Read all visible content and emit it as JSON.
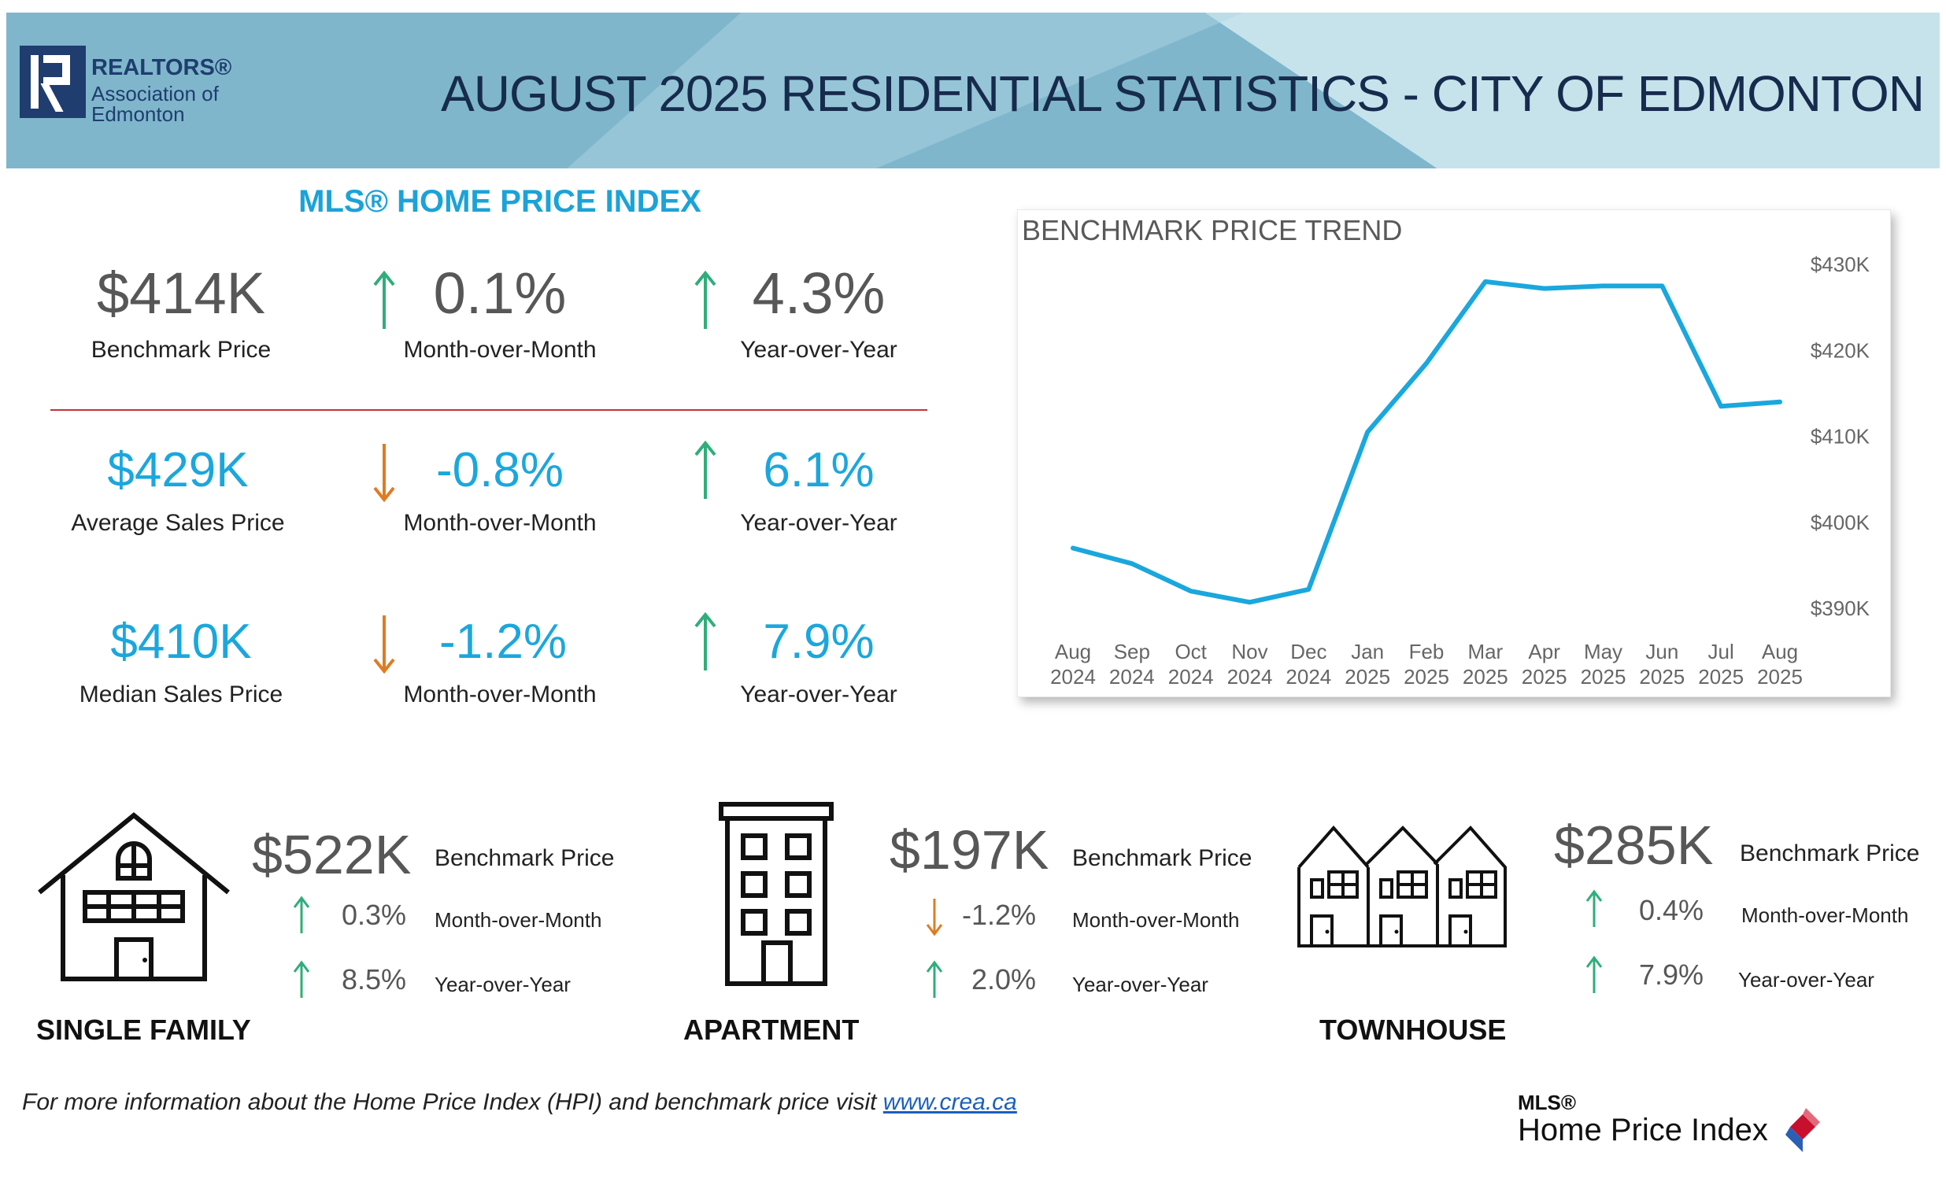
{
  "header": {
    "logo_line1": "REALTORS®",
    "logo_line2": "Association of",
    "logo_line3": "Edmonton",
    "title": "AUGUST 2025 RESIDENTIAL STATISTICS - CITY OF EDMONTON"
  },
  "hpi": {
    "heading": "MLS® HOME PRICE INDEX",
    "rows": [
      {
        "value": "$414K",
        "label": "Benchmark Price",
        "mom": "0.1%",
        "mom_label": "Month-over-Month",
        "mom_dir": "up",
        "yoy": "4.3%",
        "yoy_label": "Year-over-Year",
        "yoy_dir": "up"
      },
      {
        "value": "$429K",
        "label": "Average Sales Price",
        "mom": "-0.8%",
        "mom_label": "Month-over-Month",
        "mom_dir": "down",
        "yoy": "6.1%",
        "yoy_label": "Year-over-Year",
        "yoy_dir": "up"
      },
      {
        "value": "$410K",
        "label": "Median Sales Price",
        "mom": "-1.2%",
        "mom_label": "Month-over-Month",
        "mom_dir": "down",
        "yoy": "7.9%",
        "yoy_label": "Year-over-Year",
        "yoy_dir": "up"
      }
    ]
  },
  "chart_data": {
    "type": "line",
    "title": "BENCHMARK PRICE TREND",
    "categories": [
      "Aug 2024",
      "Sep 2024",
      "Oct 2024",
      "Nov 2024",
      "Dec 2024",
      "Jan 2025",
      "Feb 2025",
      "Mar 2025",
      "Apr 2025",
      "May 2025",
      "Jun 2025",
      "Jul 2025",
      "Aug 2025"
    ],
    "x_tick_lines": [
      [
        "Aug",
        "2024"
      ],
      [
        "Sep",
        "2024"
      ],
      [
        "Oct",
        "2024"
      ],
      [
        "Nov",
        "2024"
      ],
      [
        "Dec",
        "2024"
      ],
      [
        "Jan",
        "2025"
      ],
      [
        "Feb",
        "2025"
      ],
      [
        "Mar",
        "2025"
      ],
      [
        "Apr",
        "2025"
      ],
      [
        "May",
        "2025"
      ],
      [
        "Jun",
        "2025"
      ],
      [
        "Jul",
        "2025"
      ],
      [
        "Aug",
        "2025"
      ]
    ],
    "values": [
      397,
      395.2,
      392,
      390.7,
      392.2,
      410.5,
      418.5,
      428,
      427.2,
      427.5,
      427.5,
      413.5,
      414
    ],
    "ylim": [
      390,
      430
    ],
    "yticks": [
      390,
      400,
      410,
      420,
      430
    ],
    "ytick_labels": [
      "$390K",
      "$400K",
      "$410K",
      "$420K",
      "$430K"
    ],
    "yaxis_side": "right",
    "grid": false,
    "color": "#1aa7dd"
  },
  "property_types": [
    {
      "type": "SINGLE FAMILY",
      "benchmark": "$522K",
      "benchmark_label": "Benchmark Price",
      "mom": "0.3%",
      "mom_label": "Month-over-Month",
      "mom_dir": "up",
      "yoy": "8.5%",
      "yoy_label": "Year-over-Year",
      "yoy_dir": "up",
      "icon": "house-icon"
    },
    {
      "type": "APARTMENT",
      "benchmark": "$197K",
      "benchmark_label": "Benchmark Price",
      "mom": "-1.2%",
      "mom_label": "Month-over-Month",
      "mom_dir": "down",
      "yoy": "2.0%",
      "yoy_label": "Year-over-Year",
      "yoy_dir": "up",
      "icon": "apartment-building-icon"
    },
    {
      "type": "TOWNHOUSE",
      "benchmark": "$285K",
      "benchmark_label": "Benchmark Price",
      "mom": "0.4%",
      "mom_label": "Month-over-Month",
      "mom_dir": "up",
      "yoy": "7.9%",
      "yoy_label": "Year-over-Year",
      "yoy_dir": "up",
      "icon": "townhouse-icon"
    }
  ],
  "footer": {
    "note": "For more information about the Home Price Index (HPI) and benchmark price visit ",
    "link": "www.crea.ca",
    "mls_small": "MLS®",
    "mls_big": "Home Price Index"
  },
  "colors": {
    "up": "#2fae7a",
    "down": "#e07b22",
    "accent": "#1aa7dd",
    "title": "#172b4d"
  }
}
